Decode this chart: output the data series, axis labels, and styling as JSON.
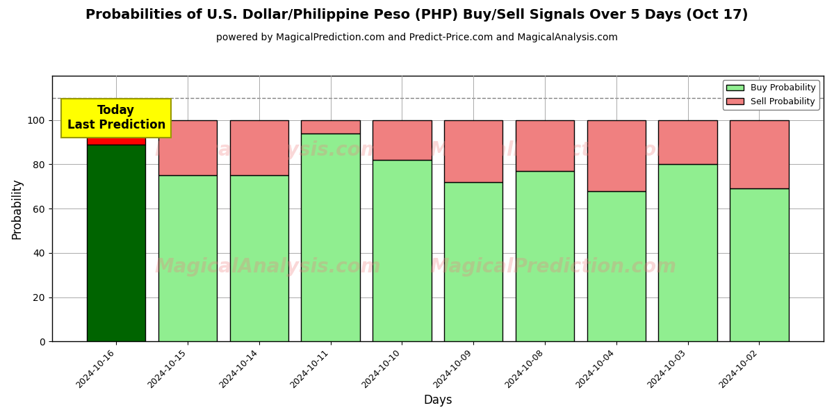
{
  "title": "Probabilities of U.S. Dollar/Philippine Peso (PHP) Buy/Sell Signals Over 5 Days (Oct 17)",
  "subtitle": "powered by MagicalPrediction.com and Predict-Price.com and MagicalAnalysis.com",
  "xlabel": "Days",
  "ylabel": "Probability",
  "dates": [
    "2024-10-16",
    "2024-10-15",
    "2024-10-14",
    "2024-10-11",
    "2024-10-10",
    "2024-10-09",
    "2024-10-08",
    "2024-10-04",
    "2024-10-03",
    "2024-10-02"
  ],
  "buy_values": [
    89,
    75,
    75,
    94,
    82,
    72,
    77,
    68,
    80,
    69
  ],
  "sell_values": [
    11,
    25,
    25,
    6,
    18,
    28,
    23,
    32,
    20,
    31
  ],
  "buy_color_today": "#006400",
  "sell_color_today": "#ff0000",
  "buy_color_other": "#90EE90",
  "sell_color_other": "#f08080",
  "bar_edgecolor": "#000000",
  "bar_linewidth": 1.0,
  "ylim": [
    0,
    120
  ],
  "dashed_line_y": 110,
  "annotation_text": "Today\nLast Prediction",
  "annotation_bg_color": "#ffff00",
  "legend_buy_label": "Buy Probability",
  "legend_sell_label": "Sell Probability",
  "grid_color": "#aaaaaa",
  "background_color": "#ffffff",
  "watermark_color": "#f08080",
  "watermark_alpha": 0.3,
  "title_fontsize": 14,
  "subtitle_fontsize": 10,
  "ylabel_fontsize": 12,
  "xlabel_fontsize": 12,
  "yticks": [
    0,
    20,
    40,
    60,
    80,
    100
  ],
  "bar_width": 0.82
}
